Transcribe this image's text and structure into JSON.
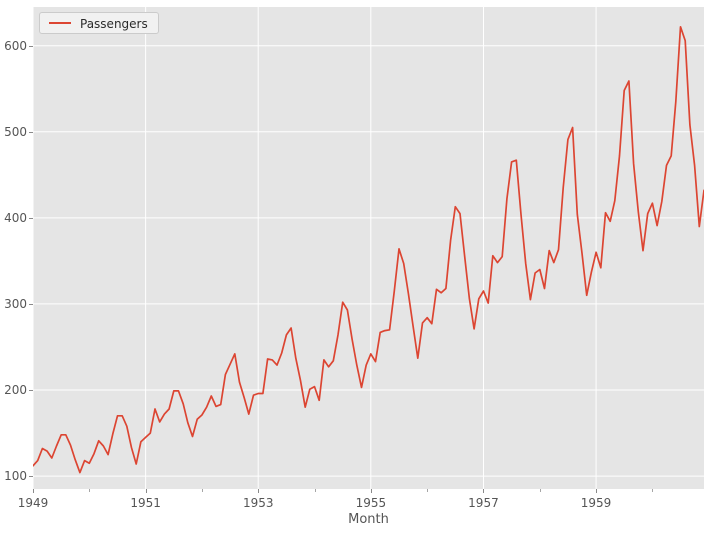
{
  "colors": {
    "figure_bg": "#ffffff",
    "axes_bg": "#e5e5e5",
    "grid": "#ffffff",
    "tick_text": "#555555",
    "axis_label_text": "#555555",
    "legend_bg": "#f1f1f1",
    "legend_border": "#cbcbcb",
    "legend_text": "#2b2b2b",
    "series_line": "#dc4532"
  },
  "chart_data": {
    "type": "line",
    "title": "",
    "xlabel": "Month",
    "ylabel": "",
    "x_unit": "monthly",
    "x_range": {
      "start_year": 1949,
      "start_month": 1,
      "end_year": 1960,
      "end_month": 12
    },
    "x_major_ticks": [
      1949,
      1951,
      1953,
      1955,
      1957,
      1959
    ],
    "x_minor_ticks": [
      1950,
      1952,
      1954,
      1956,
      1958,
      1960
    ],
    "y_ticks": [
      100,
      200,
      300,
      400,
      500,
      600
    ],
    "ylim": [
      85,
      645
    ],
    "grid": "major gridlines, white on gray background",
    "legend_position": "upper-left",
    "series": [
      {
        "name": "Passengers",
        "color": "#dc4532",
        "values": [
          112,
          118,
          132,
          129,
          121,
          135,
          148,
          148,
          136,
          119,
          104,
          118,
          115,
          126,
          141,
          135,
          125,
          149,
          170,
          170,
          158,
          133,
          114,
          140,
          145,
          150,
          178,
          163,
          172,
          178,
          199,
          199,
          184,
          162,
          146,
          166,
          171,
          180,
          193,
          181,
          183,
          218,
          230,
          242,
          209,
          191,
          172,
          194,
          196,
          196,
          236,
          235,
          229,
          243,
          264,
          272,
          237,
          211,
          180,
          201,
          204,
          188,
          235,
          227,
          234,
          264,
          302,
          293,
          259,
          229,
          203,
          229,
          242,
          233,
          267,
          269,
          270,
          315,
          364,
          347,
          312,
          274,
          237,
          278,
          284,
          277,
          317,
          313,
          318,
          374,
          413,
          405,
          355,
          306,
          271,
          306,
          315,
          301,
          356,
          348,
          355,
          422,
          465,
          467,
          404,
          347,
          305,
          336,
          340,
          318,
          362,
          348,
          363,
          435,
          491,
          505,
          404,
          359,
          310,
          337,
          360,
          342,
          406,
          396,
          420,
          472,
          548,
          559,
          463,
          407,
          362,
          405,
          417,
          391,
          419,
          461,
          472,
          535,
          622,
          606,
          508,
          461,
          390,
          432
        ]
      }
    ]
  }
}
